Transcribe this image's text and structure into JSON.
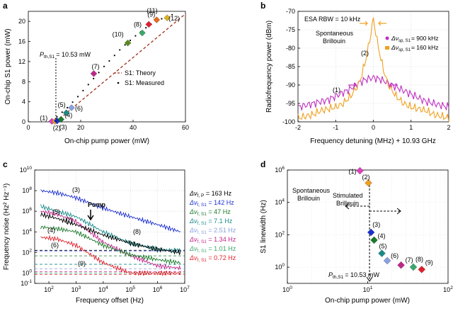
{
  "panel_a": {
    "letter": "a",
    "threshold_label": "P",
    "threshold_sub": "th,S1",
    "threshold_text": "= 10.53 mW",
    "legend_theory": "S1: Theory",
    "legend_measured": "S1: Measured",
    "point_labels": [
      "(1)",
      "(2)",
      "(3)",
      "(4)",
      "(5)",
      "(6)",
      "(7)",
      "(8)",
      "(9)",
      "(10)",
      "(11)",
      "(12)"
    ]
  },
  "panel_b": {
    "letter": "b",
    "rbw": "ESA RBW = 10 kHz",
    "spont_line1": "Spontaneous",
    "spont_line2": "Brillouin",
    "leg1_prefix": "Δν",
    "leg1_sub": "sp, S1",
    "leg1_value": "= 900 kHz",
    "leg2_prefix": "Δν",
    "leg2_sub": "sp, S1",
    "leg2_value": "= 160 kHz",
    "curve1_label": "(1)",
    "curve2_label": "(2)"
  },
  "panel_c": {
    "letter": "c",
    "pump_label": "Pump",
    "curve_labels": [
      "(3)",
      "(5)",
      "(7)",
      "(4)",
      "(6)",
      "(8)",
      "(9)"
    ],
    "legend": [
      {
        "prefix": "Δν",
        "sub": "f, P",
        "value": "= 163 Hz",
        "color": "#000000"
      },
      {
        "prefix": "Δν",
        "sub": "f, S1",
        "value": "= 142 Hz",
        "color": "#1a2fd0"
      },
      {
        "prefix": "Δν",
        "sub": "f, S1",
        "value": "= 47 Hz",
        "color": "#1a7a2a"
      },
      {
        "prefix": "Δν",
        "sub": "f, S1",
        "value": "= 7.1 Hz",
        "color": "#1a8a8a"
      },
      {
        "prefix": "Δν",
        "sub": "f, S1",
        "value": "= 2.51 Hz",
        "color": "#8aa0e0"
      },
      {
        "prefix": "Δν",
        "sub": "f, S1",
        "value": "= 1.34 Hz",
        "color": "#c0258a"
      },
      {
        "prefix": "Δν",
        "sub": "f, S1",
        "value": "= 1.01 Hz",
        "color": "#3aa86a"
      },
      {
        "prefix": "Δν",
        "sub": "f, S1",
        "value": "= 0.72 Hz",
        "color": "#e0202a"
      }
    ]
  },
  "panel_d": {
    "letter": "d",
    "spont_line1": "Spontaneous",
    "spont_line2": "Brillouin",
    "stim_line1": "Stimulated",
    "stim_line2": "Brillouin",
    "threshold_label": "P",
    "threshold_sub": "th,S1",
    "threshold_text": "= 10.53 mW",
    "point_labels": [
      "(1)",
      "(2)",
      "(3)",
      "(4)",
      "(5)",
      "(6)",
      "(7)",
      "(8)",
      "(9)"
    ]
  },
  "chart_data": [
    {
      "type": "scatter",
      "panel": "a",
      "xlabel": "On-chip pump power (mW)",
      "ylabel": "On-chip S1 power (mW)",
      "xlim": [
        0,
        60
      ],
      "ylim": [
        0,
        22
      ],
      "xticks": [
        0,
        20,
        40,
        60
      ],
      "yticks": [
        0,
        4,
        8,
        12,
        16,
        20
      ],
      "threshold_x": 10.53,
      "points": [
        {
          "label": "(1)",
          "x": 9,
          "y": 0.1,
          "color": "#e040c0"
        },
        {
          "label": "(2)",
          "x": 10.2,
          "y": 0.1,
          "color": "#f0a020"
        },
        {
          "label": "(3)",
          "x": 11,
          "y": 0.2,
          "color": "#1a2fd0"
        },
        {
          "label": "(4)",
          "x": 12.5,
          "y": 0.5,
          "color": "#1a7a2a"
        },
        {
          "label": "(5)",
          "x": 14.5,
          "y": 1.8,
          "color": "#1a8a8a"
        },
        {
          "label": "(6)",
          "x": 16.5,
          "y": 2.8,
          "color": "#8aa0e0"
        },
        {
          "label": "(7)",
          "x": 25,
          "y": 9.6,
          "color": "#c0258a"
        },
        {
          "label": "(8)",
          "x": 43.5,
          "y": 17.7,
          "color": "#3aa86a"
        },
        {
          "label": "(9)",
          "x": 46,
          "y": 19.4,
          "color": "#e0202a"
        },
        {
          "label": "(10)",
          "x": 38,
          "y": 15.7,
          "color": "#5a8a1a"
        },
        {
          "label": "(11)",
          "x": 49,
          "y": 20.3,
          "color": "#e86a1a"
        },
        {
          "label": "(12)",
          "x": 53,
          "y": 20.7,
          "color": "#e0b020"
        }
      ],
      "theory": {
        "x": [
          10.53,
          60
        ],
        "y": [
          0,
          21.5
        ]
      },
      "measured_dots_x": [
        12,
        14,
        16,
        18,
        20,
        22,
        24,
        26,
        28,
        30,
        32,
        34,
        36,
        38,
        40,
        42,
        44,
        46,
        48,
        50,
        52,
        54,
        56
      ],
      "measured_dots_y": [
        0.6,
        1.5,
        2.4,
        3.5,
        4.6,
        5.8,
        7.0,
        8.2,
        9.4,
        10.6,
        11.7,
        12.8,
        13.9,
        14.9,
        15.8,
        16.7,
        17.5,
        18.3,
        19.0,
        19.6,
        20.1,
        20.5,
        20.9
      ]
    },
    {
      "type": "line",
      "panel": "b",
      "xlabel": "Frequency detuning (MHz) + 10.93 GHz",
      "ylabel": "Radiofrequency power (dBm)",
      "xlim": [
        -2,
        2
      ],
      "ylim": [
        -100,
        -70
      ],
      "xticks": [
        -2,
        -1,
        0,
        1,
        2
      ],
      "yticks": [
        -100,
        -95,
        -90,
        -85,
        -80,
        -75,
        -70
      ],
      "series": [
        {
          "name": "(1) 900 kHz",
          "color": "#c030c0",
          "x": [
            -2,
            -1.8,
            -1.6,
            -1.4,
            -1.2,
            -1.0,
            -0.8,
            -0.6,
            -0.4,
            -0.2,
            0,
            0.2,
            0.4,
            0.6,
            0.8,
            1.0,
            1.2,
            1.4,
            1.6,
            1.8,
            2
          ],
          "y": [
            -96,
            -95.5,
            -95,
            -94.5,
            -94,
            -93,
            -92,
            -91,
            -89.5,
            -88.5,
            -88,
            -88.5,
            -89.5,
            -90.5,
            -91.5,
            -92.5,
            -93.5,
            -94.5,
            -95,
            -95.5,
            -96
          ]
        },
        {
          "name": "(2) 160 kHz",
          "color": "#f0a020",
          "x": [
            -2,
            -1.8,
            -1.6,
            -1.4,
            -1.2,
            -1.0,
            -0.8,
            -0.6,
            -0.4,
            -0.3,
            -0.2,
            -0.1,
            0,
            0.1,
            0.2,
            0.3,
            0.4,
            0.6,
            0.8,
            1.0,
            1.2,
            1.4,
            1.6,
            1.8,
            2
          ],
          "y": [
            -99,
            -98.5,
            -98,
            -97,
            -96.5,
            -96,
            -95,
            -93,
            -90,
            -87,
            -83,
            -78,
            -72,
            -78,
            -83,
            -87,
            -90,
            -93,
            -95,
            -96,
            -96.5,
            -97,
            -98,
            -98.5,
            -99
          ]
        }
      ]
    },
    {
      "type": "line",
      "panel": "c",
      "xlabel": "Frequency offset (Hz)",
      "ylabel": "Frequency noise (Hz² Hz⁻¹)",
      "xscale": "log",
      "yscale": "log",
      "xlim": [
        30,
        10000000
      ],
      "ylim": [
        0.1,
        10000000000
      ],
      "xtick_exponents": [
        2,
        3,
        4,
        5,
        6,
        7
      ],
      "ytick_exponents": [
        -1,
        0,
        2,
        4,
        6,
        8,
        10
      ],
      "series": [
        {
          "name": "(3)",
          "color": "#1a2fd0",
          "x": [
            50,
            200,
            1000,
            10000,
            100000,
            1000000,
            7000000
          ],
          "y": [
            100000000,
            60000000,
            20000000,
            2000000,
            300000,
            50000,
            10000
          ]
        },
        {
          "name": "(5)",
          "color": "#1a8a8a",
          "x": [
            50,
            200,
            1000,
            10000,
            100000,
            1000000,
            7000000
          ],
          "y": [
            3000000,
            1000000,
            300000,
            10000,
            800,
            200,
            150
          ]
        },
        {
          "name": "(7)",
          "color": "#c0258a",
          "x": [
            50,
            200,
            1000,
            10000,
            100000,
            1000000,
            7000000
          ],
          "y": [
            1000000,
            500000,
            100000,
            1000,
            50,
            5,
            3
          ]
        },
        {
          "name": "(4)",
          "color": "#1a7a2a",
          "x": [
            50,
            200,
            1000,
            10000,
            100000,
            1000000,
            7000000
          ],
          "y": [
            30000,
            20000,
            10000,
            500,
            60,
            20,
            10
          ]
        },
        {
          "name": "pump",
          "color": "#000000",
          "x": [
            50,
            200,
            1000,
            10000,
            100000,
            1000000,
            7000000
          ],
          "y": [
            500000,
            200000,
            50000,
            5000,
            800,
            200,
            100
          ]
        },
        {
          "name": "(9)",
          "color": "#e0202a",
          "x": [
            50,
            200,
            1000,
            10000,
            100000,
            1000000,
            7000000
          ],
          "y": [
            3000,
            2000,
            500,
            10,
            1,
            1,
            1
          ]
        }
      ],
      "dashed_levels": [
        {
          "y": 163,
          "color": "#000000"
        },
        {
          "y": 142,
          "color": "#1a2fd0"
        },
        {
          "y": 47,
          "color": "#1a7a2a"
        },
        {
          "y": 7.1,
          "color": "#1a8a8a"
        },
        {
          "y": 2.51,
          "color": "#8aa0e0"
        },
        {
          "y": 1.34,
          "color": "#c0258a"
        },
        {
          "y": 1.01,
          "color": "#3aa86a"
        },
        {
          "y": 0.72,
          "color": "#e0202a"
        }
      ]
    },
    {
      "type": "scatter",
      "panel": "d",
      "xlabel": "On-chip pump power (mW)",
      "ylabel": "S1 linewidth (Hz)",
      "xscale": "log",
      "yscale": "log",
      "xlim": [
        1,
        100
      ],
      "ylim": [
        0.1,
        1000000
      ],
      "xtick_exponents": [
        0,
        1,
        2
      ],
      "ytick_exponents": [
        0,
        2,
        4,
        6
      ],
      "threshold_x": 10.53,
      "points": [
        {
          "label": "(1)",
          "x": 8,
          "y": 900000,
          "color": "#e040c0"
        },
        {
          "label": "(2)",
          "x": 10.2,
          "y": 160000,
          "color": "#f0a020"
        },
        {
          "label": "(3)",
          "x": 11,
          "y": 142,
          "color": "#1a2fd0"
        },
        {
          "label": "(4)",
          "x": 12,
          "y": 47,
          "color": "#1a7a2a"
        },
        {
          "label": "(5)",
          "x": 15,
          "y": 7.1,
          "color": "#1a8a8a"
        },
        {
          "label": "(6)",
          "x": 17.5,
          "y": 2.51,
          "color": "#8aa0e0"
        },
        {
          "label": "(7)",
          "x": 26,
          "y": 1.34,
          "color": "#c0258a"
        },
        {
          "label": "(8)",
          "x": 37,
          "y": 1.01,
          "color": "#3aa86a"
        },
        {
          "label": "(9)",
          "x": 47,
          "y": 0.72,
          "color": "#e0202a"
        }
      ]
    }
  ]
}
